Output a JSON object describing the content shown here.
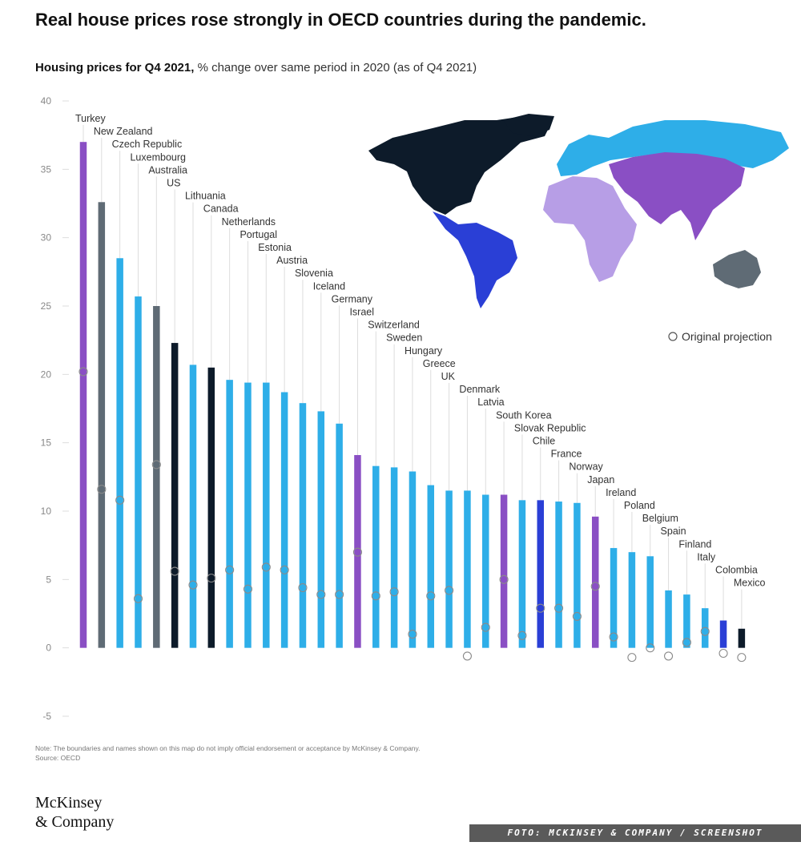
{
  "headline": "Real house prices rose strongly in OECD countries during the pandemic.",
  "subtitle_bold": "Housing prices for Q4 2021,",
  "subtitle_rest": " % change over same period in 2020 (as of Q4 2021)",
  "legend_projection": "Original projection",
  "note": "Note: The boundaries and names shown on this map do not imply official endorsement or acceptance by McKinsey & Company.",
  "source": "Source: OECD",
  "logo_line1": "McKinsey",
  "logo_line2": "& Company",
  "photo_credit": "FOTO: MCKINSEY & COMPANY / SCREENSHOT",
  "colors": {
    "north_america": "#0d1b2a",
    "latin_america": "#2a3fd6",
    "europe": "#2eaee8",
    "africa": "#b79ee6",
    "asia": "#8a4fc4",
    "oceania": "#5f6b75",
    "grid": "#dddddd",
    "axis_text": "#888888"
  },
  "chart_data": {
    "type": "bar",
    "title": "Housing prices for Q4 2021, % change over same period in 2020 (as of Q4 2021)",
    "ylim": [
      -5,
      40
    ],
    "yticks": [
      40,
      35,
      30,
      25,
      20,
      15,
      10,
      5,
      0,
      -5
    ],
    "grid": false,
    "legend": "right",
    "categories": [
      "Turkey",
      "New Zealand",
      "Czech Republic",
      "Luxembourg",
      "Australia",
      "US",
      "Lithuania",
      "Canada",
      "Netherlands",
      "Portugal",
      "Estonia",
      "Austria",
      "Slovenia",
      "Iceland",
      "Germany",
      "Israel",
      "Switzerland",
      "Sweden",
      "Hungary",
      "Greece",
      "UK",
      "Denmark",
      "Latvia",
      "South Korea",
      "Slovak Republic",
      "Chile",
      "France",
      "Norway",
      "Japan",
      "Ireland",
      "Poland",
      "Belgium",
      "Spain",
      "Finland",
      "Italy",
      "Colombia",
      "Mexico"
    ],
    "regions": [
      "asia",
      "oceania",
      "europe",
      "europe",
      "oceania",
      "north_america",
      "europe",
      "north_america",
      "europe",
      "europe",
      "europe",
      "europe",
      "europe",
      "europe",
      "europe",
      "asia",
      "europe",
      "europe",
      "europe",
      "europe",
      "europe",
      "europe",
      "europe",
      "asia",
      "europe",
      "latin_america",
      "europe",
      "europe",
      "asia",
      "europe",
      "europe",
      "europe",
      "europe",
      "europe",
      "europe",
      "latin_america",
      "north_america"
    ],
    "series": [
      {
        "name": "Housing price change (%)",
        "values": [
          37.0,
          32.6,
          28.5,
          25.7,
          25.0,
          22.3,
          20.7,
          20.5,
          19.6,
          19.4,
          19.4,
          18.7,
          17.9,
          17.3,
          16.4,
          14.1,
          13.3,
          13.2,
          12.9,
          11.9,
          11.5,
          11.5,
          11.2,
          11.2,
          10.8,
          10.8,
          10.7,
          10.6,
          9.6,
          7.3,
          7.0,
          6.7,
          4.2,
          3.9,
          2.9,
          2.0,
          1.4
        ]
      },
      {
        "name": "Original projection",
        "values": [
          20.2,
          11.6,
          10.8,
          3.6,
          13.4,
          5.6,
          4.6,
          5.1,
          5.7,
          4.3,
          5.9,
          5.7,
          4.4,
          3.9,
          3.9,
          7.0,
          3.8,
          4.1,
          1.0,
          3.8,
          4.2,
          -0.6,
          1.5,
          5.0,
          0.9,
          2.9,
          2.9,
          2.3,
          4.5,
          0.8,
          -0.7,
          0.0,
          -0.6,
          0.4,
          1.2,
          -0.4,
          -0.7
        ]
      }
    ]
  }
}
